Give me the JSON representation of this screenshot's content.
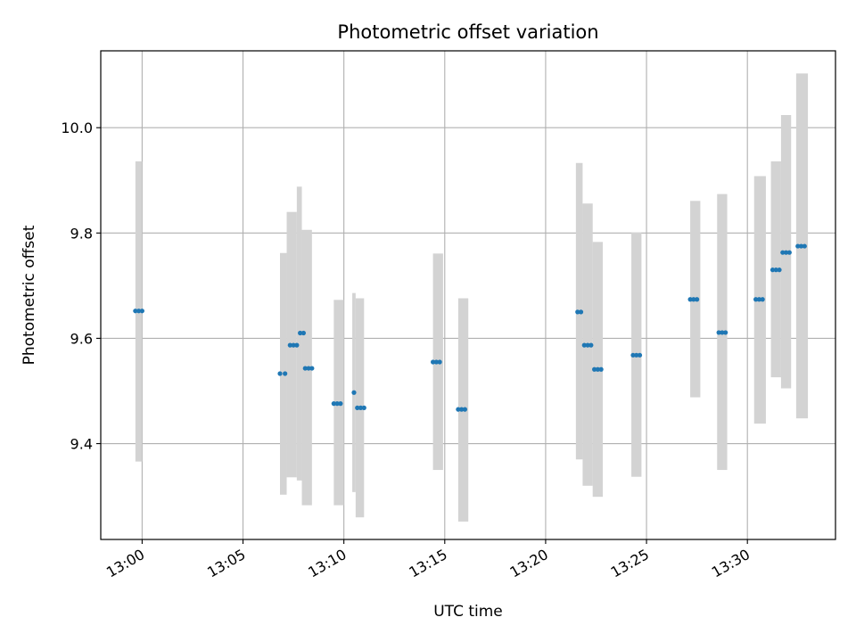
{
  "chart_data": {
    "type": "scatter",
    "title": "Photometric offset variation",
    "xlabel": "UTC time",
    "ylabel": "Photometric offset",
    "x_axis": "time",
    "xlim": [
      "12:57:57",
      "13:34:22"
    ],
    "ylim": [
      9.218,
      10.146
    ],
    "grid": true,
    "x_ticks": [
      "13:00",
      "13:05",
      "13:10",
      "13:15",
      "13:20",
      "13:25",
      "13:30"
    ],
    "y_ticks": [
      9.4,
      9.6,
      9.8,
      10.0
    ],
    "colors": {
      "points": "#1f77b4",
      "error_band": "#d3d3d3",
      "grid": "#b0b0b0"
    },
    "error_bands": [
      {
        "t_start": "12:59:40",
        "t_end": "13:00:00",
        "low": 9.366,
        "high": 9.936
      },
      {
        "t_start": "13:06:50",
        "t_end": "13:07:10",
        "low": 9.303,
        "high": 9.762
      },
      {
        "t_start": "13:07:10",
        "t_end": "13:07:40",
        "low": 9.336,
        "high": 9.84
      },
      {
        "t_start": "13:07:40",
        "t_end": "13:07:55",
        "low": 9.33,
        "high": 9.888
      },
      {
        "t_start": "13:07:55",
        "t_end": "13:08:25",
        "low": 9.283,
        "high": 9.806
      },
      {
        "t_start": "13:09:30",
        "t_end": "13:10:00",
        "low": 9.283,
        "high": 9.673
      },
      {
        "t_start": "13:10:25",
        "t_end": "13:10:35",
        "low": 9.308,
        "high": 9.686
      },
      {
        "t_start": "13:10:35",
        "t_end": "13:11:00",
        "low": 9.26,
        "high": 9.676
      },
      {
        "t_start": "13:14:25",
        "t_end": "13:14:55",
        "low": 9.35,
        "high": 9.761
      },
      {
        "t_start": "13:15:40",
        "t_end": "13:16:10",
        "low": 9.252,
        "high": 9.676
      },
      {
        "t_start": "13:21:30",
        "t_end": "13:21:50",
        "low": 9.37,
        "high": 9.933
      },
      {
        "t_start": "13:21:50",
        "t_end": "13:22:20",
        "low": 9.32,
        "high": 9.856
      },
      {
        "t_start": "13:22:20",
        "t_end": "13:22:50",
        "low": 9.299,
        "high": 9.783
      },
      {
        "t_start": "13:24:15",
        "t_end": "13:24:45",
        "low": 9.337,
        "high": 9.801
      },
      {
        "t_start": "13:27:10",
        "t_end": "13:27:40",
        "low": 9.488,
        "high": 9.861
      },
      {
        "t_start": "13:28:30",
        "t_end": "13:29:00",
        "low": 9.35,
        "high": 9.874
      },
      {
        "t_start": "13:30:20",
        "t_end": "13:30:55",
        "low": 9.438,
        "high": 9.908
      },
      {
        "t_start": "13:31:10",
        "t_end": "13:31:40",
        "low": 9.526,
        "high": 9.936
      },
      {
        "t_start": "13:31:40",
        "t_end": "13:32:10",
        "low": 9.505,
        "high": 10.024
      },
      {
        "t_start": "13:32:25",
        "t_end": "13:33:00",
        "low": 9.448,
        "high": 10.103
      }
    ],
    "points": [
      {
        "t": "12:59:40",
        "y": 9.652
      },
      {
        "t": "12:59:50",
        "y": 9.652
      },
      {
        "t": "13:00:00",
        "y": 9.652
      },
      {
        "t": "13:06:50",
        "y": 9.533
      },
      {
        "t": "13:07:05",
        "y": 9.533
      },
      {
        "t": "13:07:20",
        "y": 9.587
      },
      {
        "t": "13:07:30",
        "y": 9.587
      },
      {
        "t": "13:07:40",
        "y": 9.587
      },
      {
        "t": "13:07:50",
        "y": 9.61
      },
      {
        "t": "13:08:00",
        "y": 9.61
      },
      {
        "t": "13:08:05",
        "y": 9.543
      },
      {
        "t": "13:08:15",
        "y": 9.543
      },
      {
        "t": "13:08:25",
        "y": 9.543
      },
      {
        "t": "13:09:30",
        "y": 9.476
      },
      {
        "t": "13:09:40",
        "y": 9.476
      },
      {
        "t": "13:09:50",
        "y": 9.476
      },
      {
        "t": "13:10:30",
        "y": 9.497
      },
      {
        "t": "13:10:40",
        "y": 9.468
      },
      {
        "t": "13:10:50",
        "y": 9.468
      },
      {
        "t": "13:11:00",
        "y": 9.468
      },
      {
        "t": "13:14:25",
        "y": 9.555
      },
      {
        "t": "13:14:35",
        "y": 9.555
      },
      {
        "t": "13:14:45",
        "y": 9.555
      },
      {
        "t": "13:15:40",
        "y": 9.465
      },
      {
        "t": "13:15:50",
        "y": 9.465
      },
      {
        "t": "13:16:00",
        "y": 9.465
      },
      {
        "t": "13:21:35",
        "y": 9.65
      },
      {
        "t": "13:21:45",
        "y": 9.65
      },
      {
        "t": "13:21:55",
        "y": 9.587
      },
      {
        "t": "13:22:05",
        "y": 9.587
      },
      {
        "t": "13:22:15",
        "y": 9.587
      },
      {
        "t": "13:22:25",
        "y": 9.541
      },
      {
        "t": "13:22:35",
        "y": 9.541
      },
      {
        "t": "13:22:45",
        "y": 9.541
      },
      {
        "t": "13:24:20",
        "y": 9.568
      },
      {
        "t": "13:24:30",
        "y": 9.568
      },
      {
        "t": "13:24:40",
        "y": 9.568
      },
      {
        "t": "13:27:10",
        "y": 9.674
      },
      {
        "t": "13:27:20",
        "y": 9.674
      },
      {
        "t": "13:27:30",
        "y": 9.674
      },
      {
        "t": "13:28:35",
        "y": 9.611
      },
      {
        "t": "13:28:45",
        "y": 9.611
      },
      {
        "t": "13:28:55",
        "y": 9.611
      },
      {
        "t": "13:30:25",
        "y": 9.674
      },
      {
        "t": "13:30:35",
        "y": 9.674
      },
      {
        "t": "13:30:45",
        "y": 9.674
      },
      {
        "t": "13:31:15",
        "y": 9.73
      },
      {
        "t": "13:31:25",
        "y": 9.73
      },
      {
        "t": "13:31:35",
        "y": 9.73
      },
      {
        "t": "13:31:45",
        "y": 9.763
      },
      {
        "t": "13:31:55",
        "y": 9.763
      },
      {
        "t": "13:32:05",
        "y": 9.763
      },
      {
        "t": "13:32:30",
        "y": 9.775
      },
      {
        "t": "13:32:40",
        "y": 9.775
      },
      {
        "t": "13:32:50",
        "y": 9.775
      }
    ]
  }
}
